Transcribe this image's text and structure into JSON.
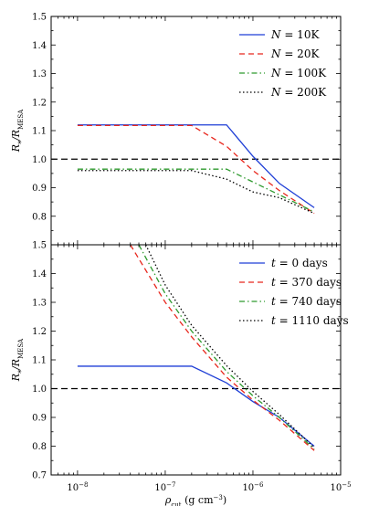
{
  "chart_data": [
    {
      "type": "line",
      "title": "",
      "xscale": "log",
      "xlim": [
        5e-09,
        1e-05
      ],
      "ylim": [
        0.7,
        1.5
      ],
      "ylabel": "R_*/R_MESA",
      "ylabel_main": "R",
      "ylabel_sub1": "*",
      "ylabel_mid": "/R",
      "ylabel_sub2": "MESA",
      "yticks": [
        "1.5",
        "1.4",
        "1.3",
        "1.2",
        "1.1",
        "1.0",
        "0.9",
        "0.8"
      ],
      "reference_line": 1.0,
      "legend_position": "top-right",
      "series": [
        {
          "name": "N = 10K",
          "color": "#1f3fd6",
          "dash": "solid",
          "x": [
            1e-08,
            2e-07,
            5e-07,
            1e-06,
            2e-06,
            5e-06
          ],
          "y": [
            1.12,
            1.12,
            1.12,
            1.01,
            0.915,
            0.83
          ]
        },
        {
          "name": "N = 20K",
          "color": "#e8261c",
          "dash": "dashed",
          "x": [
            1e-08,
            2e-07,
            5e-07,
            1e-06,
            2e-06,
            5e-06
          ],
          "y": [
            1.118,
            1.118,
            1.045,
            0.96,
            0.89,
            0.81
          ]
        },
        {
          "name": "N = 100K",
          "color": "#2e9a2e",
          "dash": "dashdot",
          "x": [
            1e-08,
            2e-07,
            5e-07,
            1e-06,
            2e-06,
            5e-06
          ],
          "y": [
            0.965,
            0.965,
            0.965,
            0.92,
            0.875,
            0.815
          ]
        },
        {
          "name": "N = 200K",
          "color": "#000000",
          "dash": "dotted",
          "x": [
            1e-08,
            2e-07,
            5e-07,
            1e-06,
            2e-06,
            5e-06
          ],
          "y": [
            0.96,
            0.96,
            0.93,
            0.885,
            0.865,
            0.81
          ]
        }
      ],
      "legend": [
        {
          "prefix": "N",
          "value": " = 10K"
        },
        {
          "prefix": "N",
          "value": " = 20K"
        },
        {
          "prefix": "N",
          "value": " = 100K"
        },
        {
          "prefix": "N",
          "value": " = 200K"
        }
      ]
    },
    {
      "type": "line",
      "title": "",
      "xscale": "log",
      "xlim": [
        5e-09,
        1e-05
      ],
      "ylim": [
        0.7,
        1.5
      ],
      "ylabel": "R_*/R_MESA",
      "ylabel_main": "R",
      "ylabel_sub1": "*",
      "ylabel_mid": "/R",
      "ylabel_sub2": "MESA",
      "xlabel": "ρ_cut (g cm^-3)",
      "xlabel_main": "ρ",
      "xlabel_sub": "cut",
      "xlabel_units_pre": " (g cm",
      "xlabel_units_sup": "−3",
      "xlabel_units_post": ")",
      "yticks": [
        "1.5",
        "1.4",
        "1.3",
        "1.2",
        "1.1",
        "1.0",
        "0.9",
        "0.8",
        "0.7"
      ],
      "xticks": [
        {
          "base": "10",
          "exp": "−8"
        },
        {
          "base": "10",
          "exp": "−7"
        },
        {
          "base": "10",
          "exp": "−6"
        },
        {
          "base": "10",
          "exp": "−5"
        }
      ],
      "reference_line": 1.0,
      "legend_position": "top-right",
      "series": [
        {
          "name": "t = 0 days",
          "color": "#1f3fd6",
          "dash": "solid",
          "x": [
            1e-08,
            2e-07,
            5e-07,
            1e-06,
            2e-06,
            5e-06
          ],
          "y": [
            1.078,
            1.078,
            1.02,
            0.955,
            0.9,
            0.8
          ]
        },
        {
          "name": "t = 370 days",
          "color": "#e8261c",
          "dash": "dashed",
          "x": [
            4e-08,
            1e-07,
            2e-07,
            5e-07,
            1e-06,
            2e-06,
            5e-06
          ],
          "y": [
            1.5,
            1.3,
            1.18,
            1.04,
            0.96,
            0.89,
            0.785
          ]
        },
        {
          "name": "t = 740 days",
          "color": "#2e9a2e",
          "dash": "dashdot",
          "x": [
            5e-08,
            1e-07,
            2e-07,
            5e-07,
            1e-06,
            2e-06,
            5e-06
          ],
          "y": [
            1.5,
            1.33,
            1.2,
            1.06,
            0.975,
            0.9,
            0.79
          ]
        },
        {
          "name": "t = 1110 days",
          "color": "#000000",
          "dash": "dotted",
          "x": [
            6e-08,
            1e-07,
            2e-07,
            5e-07,
            1e-06,
            2e-06,
            5e-06
          ],
          "y": [
            1.5,
            1.36,
            1.22,
            1.08,
            0.99,
            0.91,
            0.795
          ]
        }
      ],
      "legend": [
        {
          "prefix": "t",
          "value": " = 0 days"
        },
        {
          "prefix": "t",
          "value": " = 370 days"
        },
        {
          "prefix": "t",
          "value": " = 740 days"
        },
        {
          "prefix": "t",
          "value": " = 1110 days"
        }
      ]
    }
  ]
}
